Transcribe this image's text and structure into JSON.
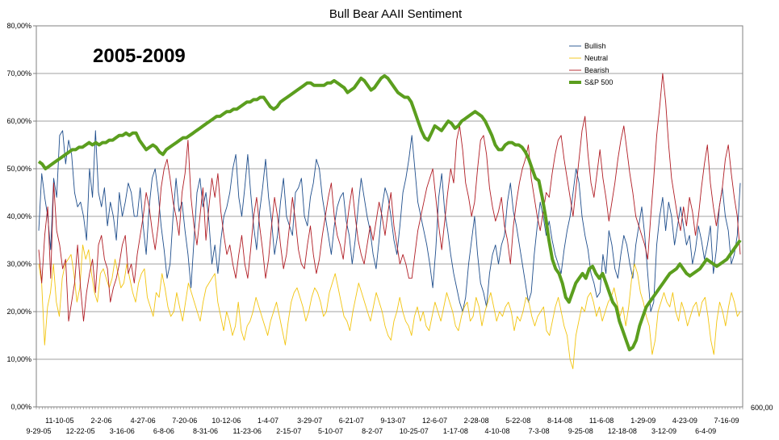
{
  "chart_data": {
    "type": "line",
    "title": "Bull Bear AAII Sentiment",
    "annotation": "2005-2009",
    "y_ticks": [
      "0,00%",
      "10,00%",
      "20,00%",
      "30,00%",
      "40,00%",
      "50,00%",
      "60,00%",
      "70,00%",
      "80,00%"
    ],
    "ylim": [
      0,
      80
    ],
    "right_axis_tick": "600,00",
    "x_labels_row1": [
      "11-10-05",
      "2-2-06",
      "4-27-06",
      "7-20-06",
      "10-12-06",
      "1-4-07",
      "3-29-07",
      "6-21-07",
      "9-13-07",
      "12-6-07",
      "2-28-08",
      "5-22-08",
      "8-14-08",
      "11-6-08",
      "1-29-09",
      "4-23-09",
      "7-16-09"
    ],
    "x_labels_row2": [
      "9-29-05",
      "12-22-05",
      "3-16-06",
      "6-8-06",
      "8-31-06",
      "11-23-06",
      "2-15-07",
      "5-10-07",
      "8-2-07",
      "10-25-07",
      "1-17-08",
      "4-10-08",
      "7-3-08",
      "9-25-08",
      "12-18-08",
      "3-12-09",
      "6-4-09"
    ],
    "grid": true,
    "legend_position": "top-right",
    "series": [
      {
        "name": "Bullish",
        "color": "#1f4e8c",
        "width": 0.9,
        "values": [
          37,
          49,
          44,
          40,
          33,
          48,
          44,
          57,
          58,
          51,
          56,
          53,
          45,
          42,
          43,
          40,
          35,
          50,
          44,
          58,
          45,
          42,
          46,
          38,
          43,
          40,
          35,
          45,
          40,
          43,
          47,
          45,
          40,
          40,
          46,
          38,
          32,
          42,
          48,
          50,
          45,
          38,
          33,
          27,
          30,
          40,
          48,
          41,
          43,
          37,
          32,
          25,
          35,
          45,
          48,
          42,
          45,
          39,
          30,
          34,
          28,
          35,
          40,
          42,
          45,
          50,
          53,
          44,
          40,
          46,
          53,
          45,
          38,
          33,
          41,
          46,
          52,
          44,
          39,
          32,
          36,
          43,
          48,
          40,
          38,
          36,
          45,
          46,
          48,
          40,
          38,
          44,
          47,
          52,
          50,
          44,
          40,
          36,
          32,
          38,
          42,
          44,
          45,
          39,
          36,
          30,
          35,
          42,
          48,
          44,
          40,
          37,
          32,
          29,
          35,
          42,
          46,
          44,
          40,
          35,
          32,
          38,
          45,
          48,
          52,
          57,
          50,
          43,
          40,
          37,
          34,
          30,
          25,
          33,
          44,
          49,
          41,
          37,
          32,
          28,
          25,
          22,
          20,
          23,
          30,
          35,
          40,
          32,
          26,
          24,
          21,
          28,
          32,
          34,
          30,
          34,
          36,
          43,
          47,
          41,
          38,
          34,
          30,
          26,
          22,
          24,
          32,
          38,
          43,
          40,
          36,
          39,
          35,
          32,
          30,
          28,
          33,
          37,
          40,
          45,
          50,
          47,
          40,
          36,
          33,
          28,
          26,
          23,
          24,
          32,
          28,
          37,
          34,
          29,
          27,
          32,
          36,
          34,
          30,
          27,
          34,
          38,
          42,
          36,
          28,
          20,
          22,
          34,
          40,
          44,
          37,
          43,
          40,
          34,
          38,
          42,
          38,
          34,
          36,
          30,
          33,
          38,
          35,
          31,
          34,
          38,
          28,
          33,
          42,
          46,
          40,
          37,
          30,
          32,
          36,
          47
        ]
      },
      {
        "name": "Neutral",
        "color": "#f2c40f",
        "width": 0.9,
        "values": [
          30,
          26,
          13,
          21,
          24,
          30,
          22,
          19,
          27,
          30,
          31,
          32,
          28,
          22,
          25,
          34,
          31,
          33,
          28,
          24,
          22,
          28,
          29,
          27,
          25,
          27,
          31,
          28,
          25,
          26,
          30,
          27,
          24,
          22,
          26,
          28,
          29,
          23,
          21,
          19,
          24,
          23,
          28,
          25,
          21,
          19,
          20,
          24,
          21,
          18,
          22,
          26,
          24,
          22,
          20,
          18,
          22,
          25,
          26,
          27,
          28,
          22,
          19,
          16,
          20,
          18,
          15,
          17,
          22,
          16,
          14,
          17,
          18,
          20,
          23,
          21,
          19,
          17,
          15,
          18,
          20,
          22,
          19,
          16,
          13,
          18,
          22,
          24,
          25,
          23,
          21,
          18,
          20,
          23,
          25,
          24,
          22,
          19,
          20,
          24,
          26,
          28,
          25,
          22,
          19,
          18,
          16,
          20,
          23,
          26,
          24,
          22,
          20,
          18,
          21,
          24,
          22,
          20,
          17,
          15,
          14,
          18,
          20,
          23,
          20,
          18,
          17,
          15,
          19,
          21,
          18,
          20,
          17,
          16,
          19,
          22,
          20,
          18,
          21,
          24,
          22,
          20,
          17,
          16,
          19,
          21,
          22,
          18,
          19,
          23,
          21,
          17,
          20,
          22,
          24,
          21,
          18,
          20,
          19,
          21,
          22,
          20,
          16,
          19,
          18,
          20,
          23,
          22,
          19,
          17,
          19,
          20,
          21,
          16,
          15,
          18,
          21,
          23,
          20,
          17,
          15,
          10,
          8,
          15,
          18,
          21,
          20,
          23,
          24,
          22,
          19,
          21,
          18,
          20,
          22,
          23,
          25,
          22,
          19,
          21,
          17,
          21,
          27,
          30,
          28,
          24,
          22,
          19,
          17,
          11,
          14,
          20,
          22,
          24,
          22,
          21,
          24,
          20,
          18,
          22,
          20,
          17,
          19,
          21,
          22,
          19,
          22,
          23,
          19,
          14,
          11,
          18,
          22,
          20,
          17,
          21,
          24,
          22,
          19,
          20
        ]
      },
      {
        "name": "Bearish",
        "color": "#b01c24",
        "width": 0.9,
        "values": [
          33,
          26,
          36,
          42,
          27,
          47,
          37,
          34,
          29,
          31,
          18,
          22,
          26,
          34,
          25,
          18,
          24,
          28,
          31,
          24,
          34,
          36,
          31,
          29,
          22,
          25,
          27,
          30,
          34,
          36,
          28,
          30,
          26,
          32,
          36,
          40,
          45,
          42,
          37,
          33,
          38,
          46,
          50,
          52,
          48,
          43,
          40,
          36,
          45,
          49,
          56,
          44,
          38,
          34,
          40,
          46,
          35,
          42,
          48,
          44,
          49,
          41,
          36,
          32,
          34,
          30,
          27,
          32,
          36,
          30,
          27,
          33,
          40,
          44,
          38,
          33,
          27,
          31,
          38,
          44,
          40,
          34,
          29,
          32,
          38,
          44,
          39,
          33,
          30,
          29,
          34,
          38,
          32,
          28,
          31,
          36,
          40,
          44,
          47,
          40,
          36,
          34,
          31,
          37,
          42,
          46,
          40,
          35,
          32,
          30,
          34,
          38,
          35,
          39,
          43,
          40,
          36,
          41,
          45,
          38,
          34,
          30,
          32,
          30,
          27,
          27,
          32,
          37,
          40,
          43,
          46,
          48,
          50,
          44,
          38,
          33,
          39,
          45,
          50,
          47,
          56,
          59,
          54,
          47,
          44,
          40,
          43,
          50,
          56,
          57,
          53,
          46,
          42,
          39,
          41,
          44,
          38,
          35,
          30,
          38,
          43,
          47,
          50,
          52,
          55,
          48,
          44,
          40,
          37,
          41,
          45,
          44,
          49,
          53,
          56,
          57,
          52,
          48,
          44,
          40,
          46,
          52,
          58,
          61,
          53,
          47,
          44,
          49,
          54,
          48,
          44,
          39,
          43,
          47,
          52,
          56,
          59,
          54,
          49,
          45,
          40,
          38,
          36,
          34,
          31,
          40,
          48,
          57,
          63,
          70,
          64,
          55,
          48,
          44,
          40,
          37,
          42,
          38,
          44,
          41,
          36,
          40,
          46,
          51,
          55,
          47,
          42,
          38,
          42,
          46,
          52,
          55,
          49,
          44,
          40,
          32
        ]
      },
      {
        "name": "S&P 500",
        "color": "#5b9e1e",
        "width": 4,
        "values": [
          51.5,
          51,
          50,
          50.5,
          51,
          51.5,
          52,
          52.5,
          53,
          53.5,
          54,
          54,
          54.5,
          54.5,
          55,
          55.5,
          55,
          55.5,
          55,
          55.5,
          55.5,
          56,
          56,
          56.5,
          57,
          57,
          57.5,
          57,
          57.5,
          57.5,
          56,
          55,
          54,
          54.5,
          55,
          54.5,
          53.5,
          53,
          54,
          54.5,
          55,
          55.5,
          56,
          56.5,
          56.5,
          57,
          57.5,
          58,
          58.5,
          59,
          59.5,
          60,
          60.5,
          61,
          61,
          61.5,
          62,
          62,
          62.5,
          62.5,
          63,
          63.5,
          64,
          64,
          64.5,
          64.5,
          65,
          65,
          64,
          63,
          62.5,
          63,
          64,
          64.5,
          65,
          65.5,
          66,
          66.5,
          67,
          67.5,
          68,
          68,
          67.5,
          67.5,
          67.5,
          67.5,
          68,
          68,
          68.5,
          68,
          67.5,
          67,
          66,
          66.5,
          67,
          68,
          69,
          68.5,
          67.5,
          66.5,
          67,
          68,
          69,
          69.5,
          69,
          68,
          67,
          66,
          65.5,
          65,
          65,
          64,
          62,
          60,
          58,
          56.5,
          56,
          57.5,
          59,
          58.5,
          58,
          59,
          60,
          59.5,
          58.5,
          59,
          60,
          60.5,
          61,
          61.5,
          62,
          61.5,
          61,
          60,
          58.5,
          57,
          55,
          54,
          54,
          55,
          55.5,
          55.5,
          55,
          55,
          54.5,
          53.5,
          52,
          50,
          48,
          47.5,
          44,
          40,
          35,
          31,
          29,
          28,
          26,
          23,
          22,
          24,
          26,
          27,
          28,
          27,
          29,
          29.5,
          28,
          27,
          28,
          26,
          24,
          22,
          21,
          18,
          16,
          14,
          12,
          12.5,
          14,
          17,
          19,
          21,
          22,
          23,
          24,
          25,
          26,
          27,
          28,
          28.5,
          29,
          30,
          29,
          28,
          27.5,
          28,
          28.5,
          29,
          30,
          31,
          30.5,
          30,
          29.5,
          30,
          30.5,
          31,
          32,
          33,
          34,
          35
        ]
      }
    ]
  }
}
